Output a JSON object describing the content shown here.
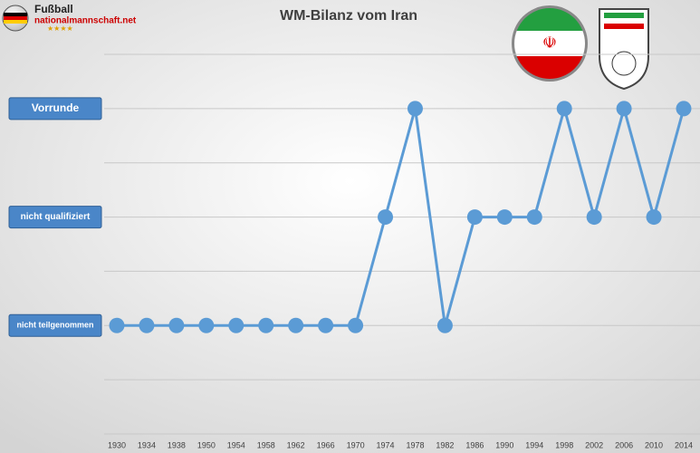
{
  "logo": {
    "line1": "Fußball",
    "line2": "nationalmannschaft.net"
  },
  "chart_data": {
    "type": "line",
    "title": "WM-Bilanz vom Iran",
    "categories": [
      "1930",
      "1934",
      "1938",
      "1950",
      "1954",
      "1958",
      "1962",
      "1966",
      "1970",
      "1974",
      "1978",
      "1982",
      "1986",
      "1990",
      "1994",
      "1998",
      "2002",
      "2006",
      "2010",
      "2014"
    ],
    "series": [
      {
        "name": "Iran",
        "color": "#5b9bd5",
        "values": [
          1,
          1,
          1,
          1,
          1,
          1,
          1,
          1,
          1,
          2,
          3,
          1,
          2,
          2,
          2,
          3,
          2,
          3,
          2,
          3
        ]
      }
    ],
    "ylim": [
      0,
      3.5
    ],
    "yticks": [
      {
        "value": 3,
        "label": "Vorrunde"
      },
      {
        "value": 2,
        "label": "nicht qualifiziert"
      },
      {
        "value": 1,
        "label": "nicht teilgenommen"
      }
    ],
    "minor_yticks": [
      0,
      0.5,
      1.5,
      2.5,
      3.5
    ],
    "grid": true
  }
}
